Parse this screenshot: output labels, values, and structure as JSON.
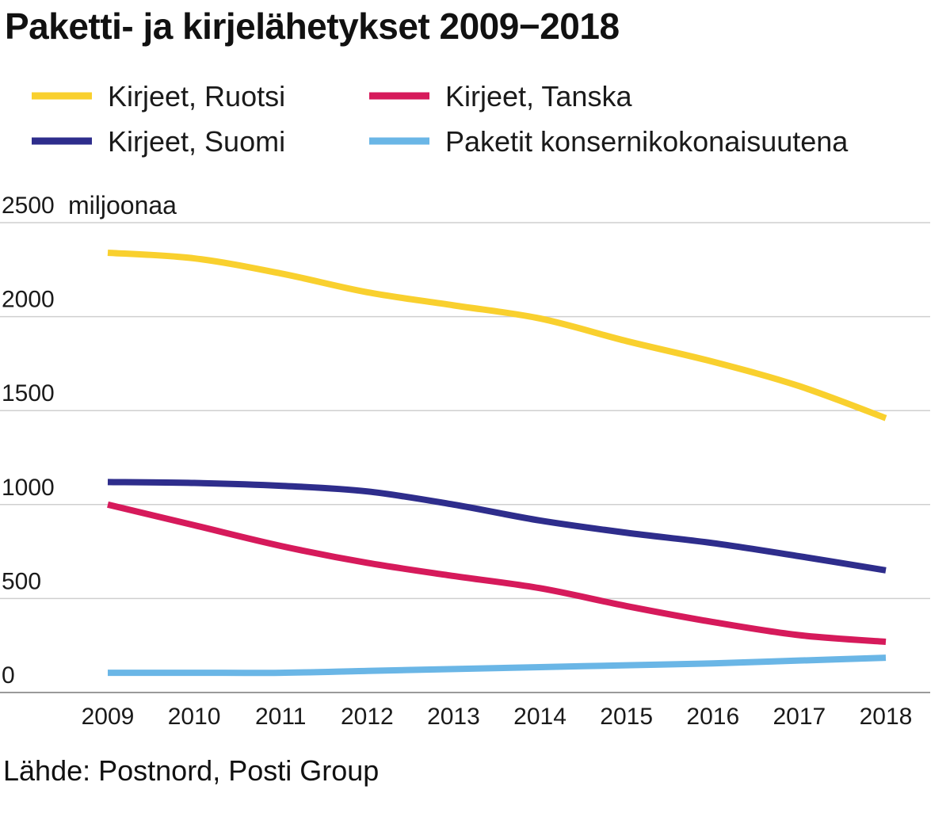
{
  "title": "Paketti- ja kirjelähetykset 2009−2018",
  "source": "Lähde: Postnord, Posti Group",
  "chart_data": {
    "type": "line",
    "title": "Paketti- ja kirjelähetykset 2009−2018",
    "ylabel": "miljoonaa",
    "xlabel": "",
    "x": [
      "2009",
      "2010",
      "2011",
      "2012",
      "2013",
      "2014",
      "2015",
      "2016",
      "2017",
      "2018"
    ],
    "ylim": [
      0,
      2500
    ],
    "yticks": [
      "0",
      "500",
      "1000",
      "1500",
      "2000",
      "2500"
    ],
    "grid": true,
    "legend_position": "top",
    "series": [
      {
        "name": "Kirjeet, Ruotsi",
        "color": "#f9d02e",
        "values": [
          2340,
          2310,
          2230,
          2130,
          2060,
          1990,
          1870,
          1760,
          1630,
          1460
        ]
      },
      {
        "name": "Kirjeet, Tanska",
        "color": "#d61a5b",
        "values": [
          1000,
          890,
          780,
          690,
          620,
          555,
          460,
          375,
          305,
          270
        ]
      },
      {
        "name": "Kirjeet, Suomi",
        "color": "#2e2d8c",
        "values": [
          1120,
          1115,
          1100,
          1070,
          1000,
          915,
          850,
          795,
          725,
          650
        ]
      },
      {
        "name": "Paketit konsernikokonaisuutena",
        "color": "#6ab6e6",
        "values": [
          105,
          105,
          105,
          115,
          125,
          135,
          145,
          155,
          170,
          185
        ]
      }
    ]
  }
}
